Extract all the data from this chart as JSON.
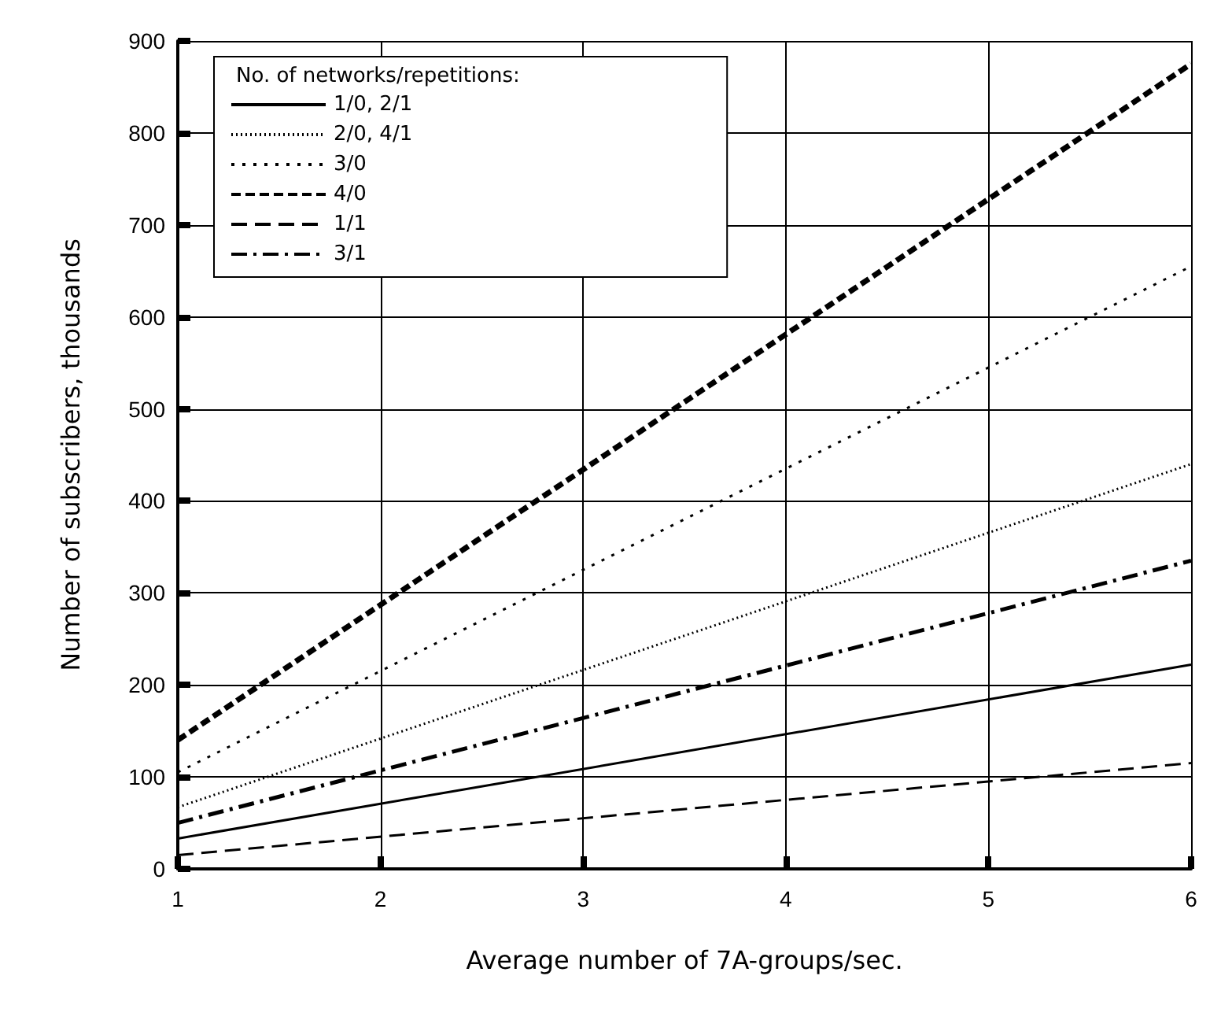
{
  "chart_data": {
    "type": "line",
    "xlabel": "Average number of 7A-groups/sec.",
    "ylabel": "Number of subscribers, thousands",
    "legend_title": "No. of networks/repetitions:",
    "x": [
      1,
      6
    ],
    "series": [
      {
        "name": "1/0, 2/1",
        "color": "#000000",
        "line_style": "solid",
        "values": [
          33,
          222
        ]
      },
      {
        "name": "2/0, 4/1",
        "color": "#000000",
        "line_style": "dotted",
        "values": [
          67,
          440
        ]
      },
      {
        "name": "3/0",
        "color": "#000000",
        "line_style": "dotted",
        "values": [
          105,
          655
        ]
      },
      {
        "name": "4/0",
        "color": "#000000",
        "line_style": "dashed",
        "values": [
          140,
          875
        ]
      },
      {
        "name": "1/1",
        "color": "#000000",
        "line_style": "dashed",
        "values": [
          15,
          115
        ]
      },
      {
        "name": "3/1",
        "color": "#000000",
        "line_style": "dashdot",
        "values": [
          50,
          335
        ]
      }
    ],
    "xlim": [
      1,
      6
    ],
    "xticks": [
      1,
      2,
      3,
      4,
      5,
      6
    ],
    "ylim": [
      0,
      900
    ],
    "yticks": [
      0,
      100,
      200,
      300,
      400,
      500,
      600,
      700,
      800,
      900
    ],
    "grid": true,
    "legend": "top left",
    "marker": "none"
  }
}
